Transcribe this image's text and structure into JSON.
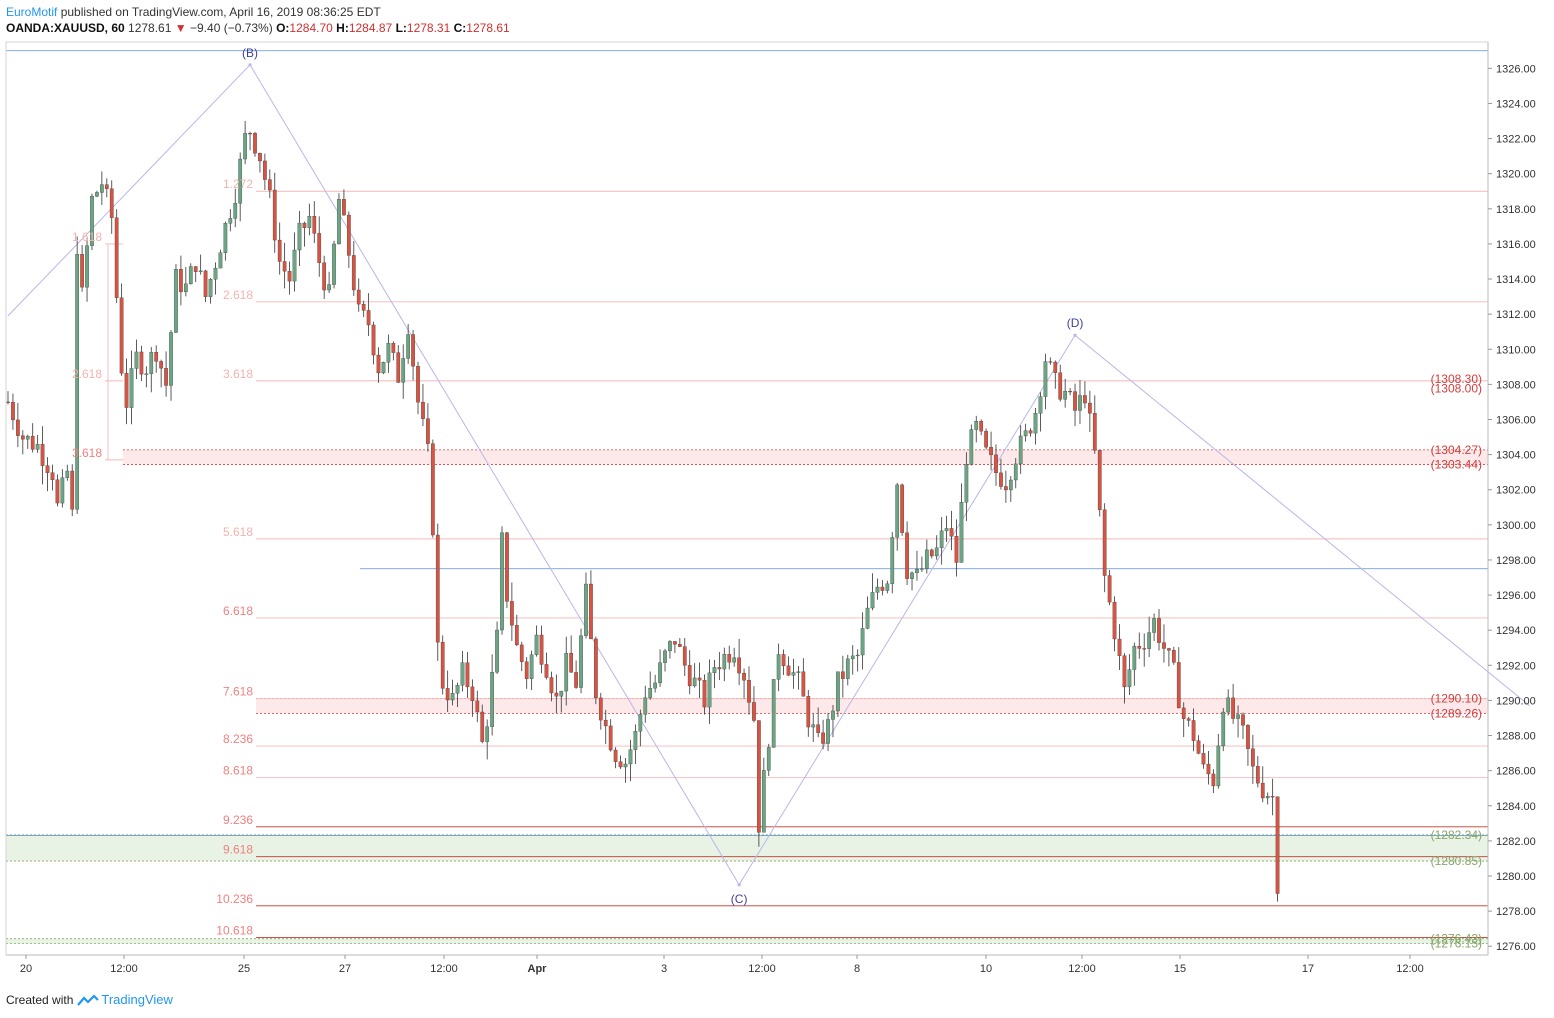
{
  "header": {
    "author": "EuroMotif",
    "published_text": "published on TradingView.com, April 16, 2019 08:36:25 EDT",
    "symbol": "OANDA:XAUUSD, 60",
    "last": "1278.61",
    "change": "−9.40 (−0.73%)",
    "o_label": "O:",
    "o": "1284.70",
    "h_label": "H:",
    "h": "1284.87",
    "l_label": "L:",
    "l": "1278.31",
    "c_label": "C:",
    "c": "1278.61"
  },
  "footer": {
    "created_with": "Created with",
    "brand": "TradingView"
  },
  "colors": {
    "up": "#6ba583",
    "down": "#d75442",
    "wave": "#b8b7e8",
    "wave_label": "#3f3fa0",
    "fib_label": "#f08080",
    "fib_label_faded": "#f4b3ad",
    "zone_red": "#fde9e9",
    "zone_green": "#e8f3e6",
    "level_red": "#d43d3d",
    "level_green": "#88a66a"
  },
  "chart_data": {
    "type": "candlestick",
    "title": "OANDA:XAUUSD, 60",
    "ylim": [
      1275.5,
      1327.5
    ],
    "y_ticks": [
      "1326.00",
      "1324.00",
      "1322.00",
      "1320.00",
      "1318.00",
      "1316.00",
      "1314.00",
      "1312.00",
      "1310.00",
      "1308.00",
      "1306.00",
      "1304.00",
      "1302.00",
      "1300.00",
      "1298.00",
      "1296.00",
      "1294.00",
      "1292.00",
      "1290.00",
      "1288.00",
      "1286.00",
      "1284.00",
      "1282.00",
      "1280.00",
      "1278.00",
      "1276.00"
    ],
    "x_ticks": [
      "20",
      "12:00",
      "25",
      "27",
      "12:00",
      "Apr",
      "3",
      "12:00",
      "8",
      "10",
      "12:00",
      "15",
      "17",
      "12:00"
    ],
    "price_path": [
      [
        0,
        1307
      ],
      [
        3,
        1305
      ],
      [
        6,
        1304.5
      ],
      [
        9,
        1303
      ],
      [
        10,
        1301
      ],
      [
        12,
        1303
      ],
      [
        13,
        1300.5
      ],
      [
        14,
        1316
      ],
      [
        15,
        1313
      ],
      [
        17,
        1318.5
      ],
      [
        19,
        1319.5
      ],
      [
        21,
        1317.5
      ],
      [
        22,
        1313
      ],
      [
        23,
        1309
      ],
      [
        24,
        1307
      ],
      [
        26,
        1309.5
      ],
      [
        28,
        1309
      ],
      [
        30,
        1310
      ],
      [
        32,
        1308
      ],
      [
        34,
        1314
      ],
      [
        36,
        1313.5
      ],
      [
        38,
        1315
      ],
      [
        40,
        1313
      ],
      [
        42,
        1315
      ],
      [
        44,
        1317
      ],
      [
        46,
        1319
      ],
      [
        48,
        1322
      ],
      [
        49,
        1322.5
      ],
      [
        51,
        1321
      ],
      [
        53,
        1318.5
      ],
      [
        55,
        1315
      ],
      [
        57,
        1314
      ],
      [
        59,
        1316.5
      ],
      [
        61,
        1317.5
      ],
      [
        63,
        1315
      ],
      [
        65,
        1313
      ],
      [
        67,
        1318.5
      ],
      [
        69,
        1315.5
      ],
      [
        71,
        1312
      ],
      [
        73,
        1311.5
      ],
      [
        75,
        1309
      ],
      [
        77,
        1310
      ],
      [
        79,
        1308.5
      ],
      [
        81,
        1311.5
      ],
      [
        83,
        1307
      ],
      [
        85,
        1304
      ],
      [
        86,
        1300
      ],
      [
        87,
        1293
      ],
      [
        88,
        1291
      ],
      [
        90,
        1290
      ],
      [
        92,
        1291.5
      ],
      [
        94,
        1290.5
      ],
      [
        96,
        1287.5
      ],
      [
        97,
        1289
      ],
      [
        99,
        1293.5
      ],
      [
        100,
        1299
      ],
      [
        101,
        1296
      ],
      [
        103,
        1293
      ],
      [
        105,
        1291.5
      ],
      [
        107,
        1293.5
      ],
      [
        109,
        1292
      ],
      [
        111,
        1290
      ],
      [
        113,
        1292
      ],
      [
        115,
        1291
      ],
      [
        117,
        1296
      ],
      [
        119,
        1290.5
      ],
      [
        121,
        1288.5
      ],
      [
        123,
        1287
      ],
      [
        125,
        1286.5
      ],
      [
        127,
        1288
      ],
      [
        129,
        1290.5
      ],
      [
        131,
        1291
      ],
      [
        133,
        1292.5
      ],
      [
        135,
        1293.5
      ],
      [
        137,
        1292
      ],
      [
        139,
        1291
      ],
      [
        141,
        1290
      ],
      [
        143,
        1292
      ],
      [
        145,
        1292.5
      ],
      [
        147,
        1293
      ],
      [
        149,
        1291.5
      ],
      [
        151,
        1289
      ],
      [
        152,
        1283
      ],
      [
        154,
        1288
      ],
      [
        156,
        1293
      ],
      [
        158,
        1292
      ],
      [
        160,
        1291
      ],
      [
        162,
        1289
      ],
      [
        164,
        1287.5
      ],
      [
        166,
        1288.5
      ],
      [
        168,
        1291
      ],
      [
        170,
        1292
      ],
      [
        172,
        1292.5
      ],
      [
        174,
        1295
      ],
      [
        176,
        1296.5
      ],
      [
        178,
        1297
      ],
      [
        180,
        1302.5
      ],
      [
        182,
        1297.5
      ],
      [
        184,
        1297
      ],
      [
        186,
        1298
      ],
      [
        188,
        1298.5
      ],
      [
        190,
        1300
      ],
      [
        192,
        1298
      ],
      [
        194,
        1304
      ],
      [
        196,
        1305.5
      ],
      [
        198,
        1304
      ],
      [
        200,
        1303
      ],
      [
        202,
        1302.5
      ],
      [
        204,
        1304
      ],
      [
        206,
        1305
      ],
      [
        208,
        1306.5
      ],
      [
        210,
        1309.5
      ],
      [
        212,
        1308
      ],
      [
        214,
        1307.5
      ],
      [
        216,
        1306.5
      ],
      [
        218,
        1307.5
      ],
      [
        220,
        1304
      ],
      [
        222,
        1297
      ],
      [
        224,
        1294
      ],
      [
        226,
        1290.5
      ],
      [
        228,
        1293
      ],
      [
        230,
        1293.5
      ],
      [
        232,
        1294.5
      ],
      [
        234,
        1293
      ],
      [
        236,
        1291.5
      ],
      [
        238,
        1289
      ],
      [
        240,
        1288
      ],
      [
        242,
        1286
      ],
      [
        244,
        1285.5
      ],
      [
        246,
        1290
      ],
      [
        248,
        1289
      ],
      [
        250,
        1288
      ],
      [
        252,
        1286
      ],
      [
        254,
        1285
      ],
      [
        256,
        1284.5
      ],
      [
        257,
        1279
      ]
    ],
    "last_bar_index": 257,
    "fib_extension_labels": [
      {
        "label": "1.272",
        "price": 1319.0,
        "group": "B"
      },
      {
        "label": "2.618",
        "price": 1312.7,
        "group": "B"
      },
      {
        "label": "3.618",
        "price": 1308.2,
        "group": "B"
      },
      {
        "label": "5.618",
        "price": 1299.2,
        "group": "B"
      },
      {
        "label": "6.618",
        "price": 1294.7,
        "group": "B"
      },
      {
        "label": "7.618",
        "price": 1290.1,
        "group": "B"
      },
      {
        "label": "8.236",
        "price": 1287.4,
        "group": "B"
      },
      {
        "label": "8.618",
        "price": 1285.6,
        "group": "B"
      },
      {
        "label": "9.236",
        "price": 1282.8,
        "group": "B"
      },
      {
        "label": "9.618",
        "price": 1281.1,
        "group": "B"
      },
      {
        "label": "10.236",
        "price": 1278.3,
        "group": "B"
      },
      {
        "label": "10.618",
        "price": 1276.5,
        "group": "B"
      },
      {
        "label": "1.618",
        "price": 1316.0,
        "group": "A"
      },
      {
        "label": "2.618",
        "price": 1308.2,
        "group": "A"
      },
      {
        "label": "3.618",
        "price": 1303.7,
        "group": "A"
      }
    ],
    "zones": [
      {
        "from": "1303.44",
        "to": "1304.27",
        "color": "red"
      },
      {
        "from": "1289.26",
        "to": "1290.10",
        "color": "red"
      },
      {
        "from": "1280.85",
        "to": "1282.34",
        "color": "green"
      },
      {
        "from": "1276.15",
        "to": "1276.43",
        "color": "green"
      }
    ],
    "zone_labels": [
      {
        "text": "(1308.30)",
        "price": 1308.3,
        "color": "red"
      },
      {
        "text": "(1308.00)",
        "price": 1308.0,
        "color": "red"
      },
      {
        "text": "(1304.27)",
        "price": 1304.27,
        "color": "red"
      },
      {
        "text": "(1303.44)",
        "price": 1303.44,
        "color": "red"
      },
      {
        "text": "(1290.10)",
        "price": 1290.1,
        "color": "red"
      },
      {
        "text": "(1289.26)",
        "price": 1289.26,
        "color": "red"
      },
      {
        "text": "(1282.34)",
        "price": 1282.34,
        "color": "green"
      },
      {
        "text": "(1280.85)",
        "price": 1280.85,
        "color": "green"
      },
      {
        "text": "(1276.43)",
        "price": 1276.43,
        "color": "green"
      },
      {
        "text": "(1276.15)",
        "price": 1276.15,
        "color": "green"
      }
    ],
    "elliott_waves": [
      {
        "label": "(B)",
        "bar": 49,
        "price": 1326.2
      },
      {
        "label": "(C)",
        "bar": 148,
        "price": 1279.5
      },
      {
        "label": "(D)",
        "bar": 216,
        "price": 1310.8
      }
    ],
    "wave_lines": [
      {
        "from_bar": 0,
        "from_price": 1311.9,
        "to_bar": 49,
        "to_price": 1326.2
      },
      {
        "from_bar": 49,
        "from_price": 1326.2,
        "to_bar": 148,
        "to_price": 1279.5
      },
      {
        "from_bar": 148,
        "from_price": 1279.5,
        "to_bar": 216,
        "to_price": 1310.8
      },
      {
        "from_bar": 216,
        "from_price": 1310.8,
        "to_bar": 308,
        "to_price": 1289.7
      }
    ],
    "reference_lines": [
      {
        "price": 1327.0,
        "color": "blue"
      },
      {
        "price": 1297.5,
        "color": "blue"
      },
      {
        "price": 1282.3,
        "color": "blue"
      }
    ]
  }
}
